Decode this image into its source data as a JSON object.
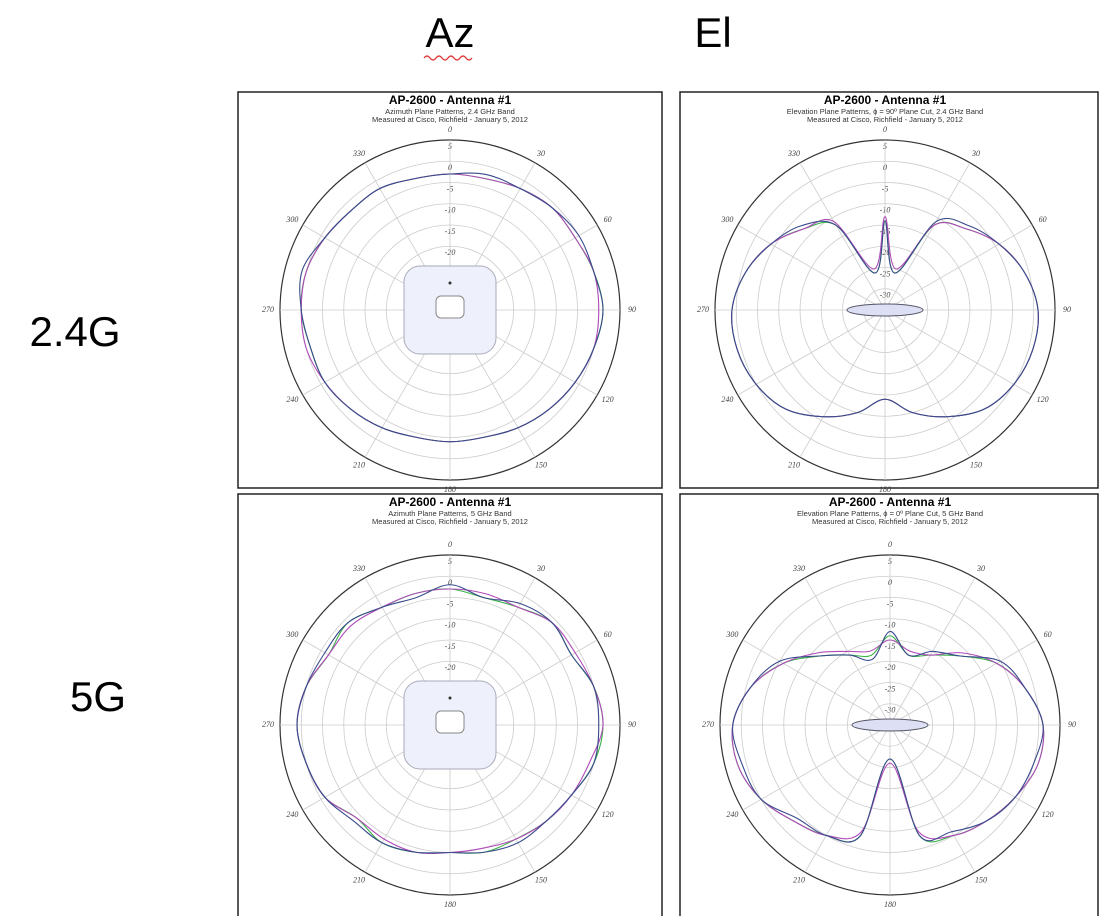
{
  "slide": {
    "columns": [
      "Az",
      "El"
    ],
    "rows": [
      "2.4G",
      "5G"
    ]
  },
  "chart_data": [
    {
      "type": "polar",
      "title": "AP-2600 - Antenna #1",
      "subtitle": [
        "Azimuth Plane Patterns, 2.4 GHz Band",
        "Measured at Cisco, Richfield - January 5, 2012"
      ],
      "theta": [
        0,
        15,
        30,
        45,
        60,
        75,
        90,
        105,
        120,
        135,
        150,
        165,
        180,
        195,
        210,
        225,
        240,
        255,
        270,
        285,
        300,
        315,
        330,
        345
      ],
      "thetaticks": [
        0,
        30,
        60,
        90,
        120,
        150,
        180,
        210,
        240,
        270,
        300,
        330
      ],
      "rlim": [
        -35,
        5
      ],
      "rticks": [
        5,
        0,
        -5,
        -10,
        -15,
        -20,
        -25,
        -30
      ],
      "grid": true,
      "series": [
        {
          "color": "#3cb34a",
          "values": [
            -3,
            -3,
            -2,
            -1,
            -1,
            0,
            1,
            0,
            -1,
            -2,
            -3,
            -4,
            -4,
            -4,
            -3,
            -2,
            -1,
            -1,
            0,
            0,
            -1,
            -2,
            -2,
            -3
          ]
        },
        {
          "color": "#b04ab8",
          "values": [
            -3,
            -3,
            -2,
            -1,
            -1,
            0,
            0,
            0,
            -1,
            -2,
            -3,
            -4,
            -4,
            -4,
            -3,
            -2,
            -1,
            0,
            0,
            0,
            -1,
            -2,
            -2,
            -3
          ]
        },
        {
          "color": "#3a4a8c",
          "values": [
            -3,
            -2,
            -2,
            -1,
            0,
            0,
            1,
            0,
            -1,
            -2,
            -3,
            -4,
            -4,
            -4,
            -3,
            -2,
            -1,
            -1,
            0,
            1,
            -1,
            -2,
            -2,
            -3
          ]
        }
      ]
    },
    {
      "type": "polar",
      "title": "AP-2600 - Antenna #1",
      "subtitle": [
        "Elevation Plane Patterns, ϕ = 90º Plane Cut, 2.4 GHz Band",
        "Measured at Cisco, Richfield - January 5, 2012"
      ],
      "theta": [
        0,
        15,
        30,
        45,
        60,
        75,
        90,
        105,
        120,
        135,
        150,
        165,
        180,
        195,
        210,
        225,
        240,
        255,
        270,
        285,
        300,
        315,
        330,
        345
      ],
      "thetaticks": [
        0,
        30,
        60,
        90,
        120,
        150,
        180,
        210,
        240,
        270,
        300,
        330
      ],
      "rlim": [
        -35,
        5
      ],
      "rticks": [
        5,
        0,
        -5,
        -10,
        -15,
        -20,
        -25,
        -30
      ],
      "grid": true,
      "series": [
        {
          "color": "#3cb34a",
          "values": [
            -14,
            -26,
            -12,
            -8,
            -4,
            -1,
            1,
            1,
            0,
            -2,
            -6,
            -10,
            -14,
            -10,
            -6,
            -2,
            0,
            1,
            1,
            -1,
            -4,
            -8,
            -12,
            -26
          ]
        },
        {
          "color": "#b04ab8",
          "values": [
            -13,
            -25,
            -12,
            -8,
            -4,
            -1,
            1,
            1,
            0,
            -2,
            -6,
            -10,
            -14,
            -10,
            -6,
            -2,
            0,
            1,
            1,
            -1,
            -4,
            -8,
            -11,
            -25
          ]
        },
        {
          "color": "#3a4a8c",
          "values": [
            -14,
            -26,
            -11,
            -7,
            -4,
            -1,
            1,
            1,
            0,
            -2,
            -6,
            -10,
            -14,
            -10,
            -6,
            -2,
            0,
            1,
            1,
            -1,
            -4,
            -7,
            -12,
            -26
          ]
        }
      ]
    },
    {
      "type": "polar",
      "title": "AP-2600 - Antenna #1",
      "subtitle": [
        "Azimuth Plane Patterns, 5 GHz Band",
        "Measured at Cisco, Richfield - January 5, 2012"
      ],
      "theta": [
        0,
        15,
        30,
        45,
        60,
        75,
        90,
        105,
        120,
        135,
        150,
        165,
        180,
        195,
        210,
        225,
        240,
        255,
        270,
        285,
        300,
        315,
        330,
        345
      ],
      "thetaticks": [
        0,
        30,
        60,
        90,
        120,
        150,
        180,
        210,
        240,
        270,
        300,
        330
      ],
      "rlim": [
        -35,
        5
      ],
      "rticks": [
        5,
        0,
        -5,
        -10,
        -15,
        -20,
        -25,
        -30
      ],
      "grid": true,
      "series": [
        {
          "color": "#3cb34a",
          "values": [
            -3,
            -4,
            -3,
            -1,
            -2,
            0,
            1,
            0,
            -2,
            -3,
            -4,
            -4,
            -5,
            -4,
            -3,
            -4,
            -1,
            0,
            1,
            0,
            -2,
            -1,
            -3,
            -3
          ]
        },
        {
          "color": "#b04ab8",
          "values": [
            -3,
            -3,
            -3,
            -1,
            -1,
            0,
            1,
            -1,
            -2,
            -3,
            -4,
            -5,
            -5,
            -4,
            -4,
            -4,
            -1,
            0,
            1,
            0,
            -2,
            -2,
            -3,
            -3
          ]
        },
        {
          "color": "#3a4a8c",
          "values": [
            -2,
            -4,
            -2,
            -1,
            -2,
            0,
            0,
            0,
            -2,
            -3,
            -3,
            -4,
            -5,
            -4,
            -3,
            -3,
            -1,
            0,
            1,
            0,
            -1,
            -1,
            -3,
            -4
          ]
        }
      ]
    },
    {
      "type": "polar",
      "title": "AP-2600 - Antenna #1",
      "subtitle": [
        "Elevation Plane Patterns, ϕ = 0º Plane Cut, 5 GHz Band",
        "Measured at Cisco, Richfield - January 5, 2012"
      ],
      "theta": [
        0,
        15,
        30,
        45,
        60,
        75,
        90,
        105,
        120,
        135,
        150,
        165,
        180,
        195,
        210,
        225,
        240,
        255,
        270,
        285,
        300,
        315,
        330,
        345
      ],
      "thetaticks": [
        0,
        30,
        60,
        90,
        120,
        150,
        180,
        210,
        240,
        270,
        300,
        330
      ],
      "rlim": [
        -35,
        5
      ],
      "rticks": [
        5,
        0,
        -5,
        -10,
        -15,
        -20,
        -25,
        -30
      ],
      "grid": true,
      "series": [
        {
          "color": "#3cb34a",
          "values": [
            -14,
            -18,
            -16,
            -12,
            -6,
            -2,
            1,
            1,
            -1,
            -3,
            -5,
            -8,
            -27,
            -8,
            -5,
            -3,
            0,
            2,
            2,
            -1,
            -6,
            -12,
            -16,
            -18
          ]
        },
        {
          "color": "#b04ab8",
          "values": [
            -15,
            -17,
            -16,
            -11,
            -6,
            -2,
            1,
            1,
            -1,
            -3,
            -5,
            -9,
            -26,
            -9,
            -5,
            -3,
            0,
            2,
            2,
            -1,
            -6,
            -11,
            -15,
            -17
          ]
        },
        {
          "color": "#3a4a8c",
          "values": [
            -13,
            -18,
            -15,
            -12,
            -5,
            -2,
            1,
            0,
            -1,
            -3,
            -6,
            -8,
            -27,
            -8,
            -5,
            -4,
            0,
            1,
            2,
            -1,
            -5,
            -12,
            -16,
            -19
          ]
        }
      ]
    }
  ]
}
